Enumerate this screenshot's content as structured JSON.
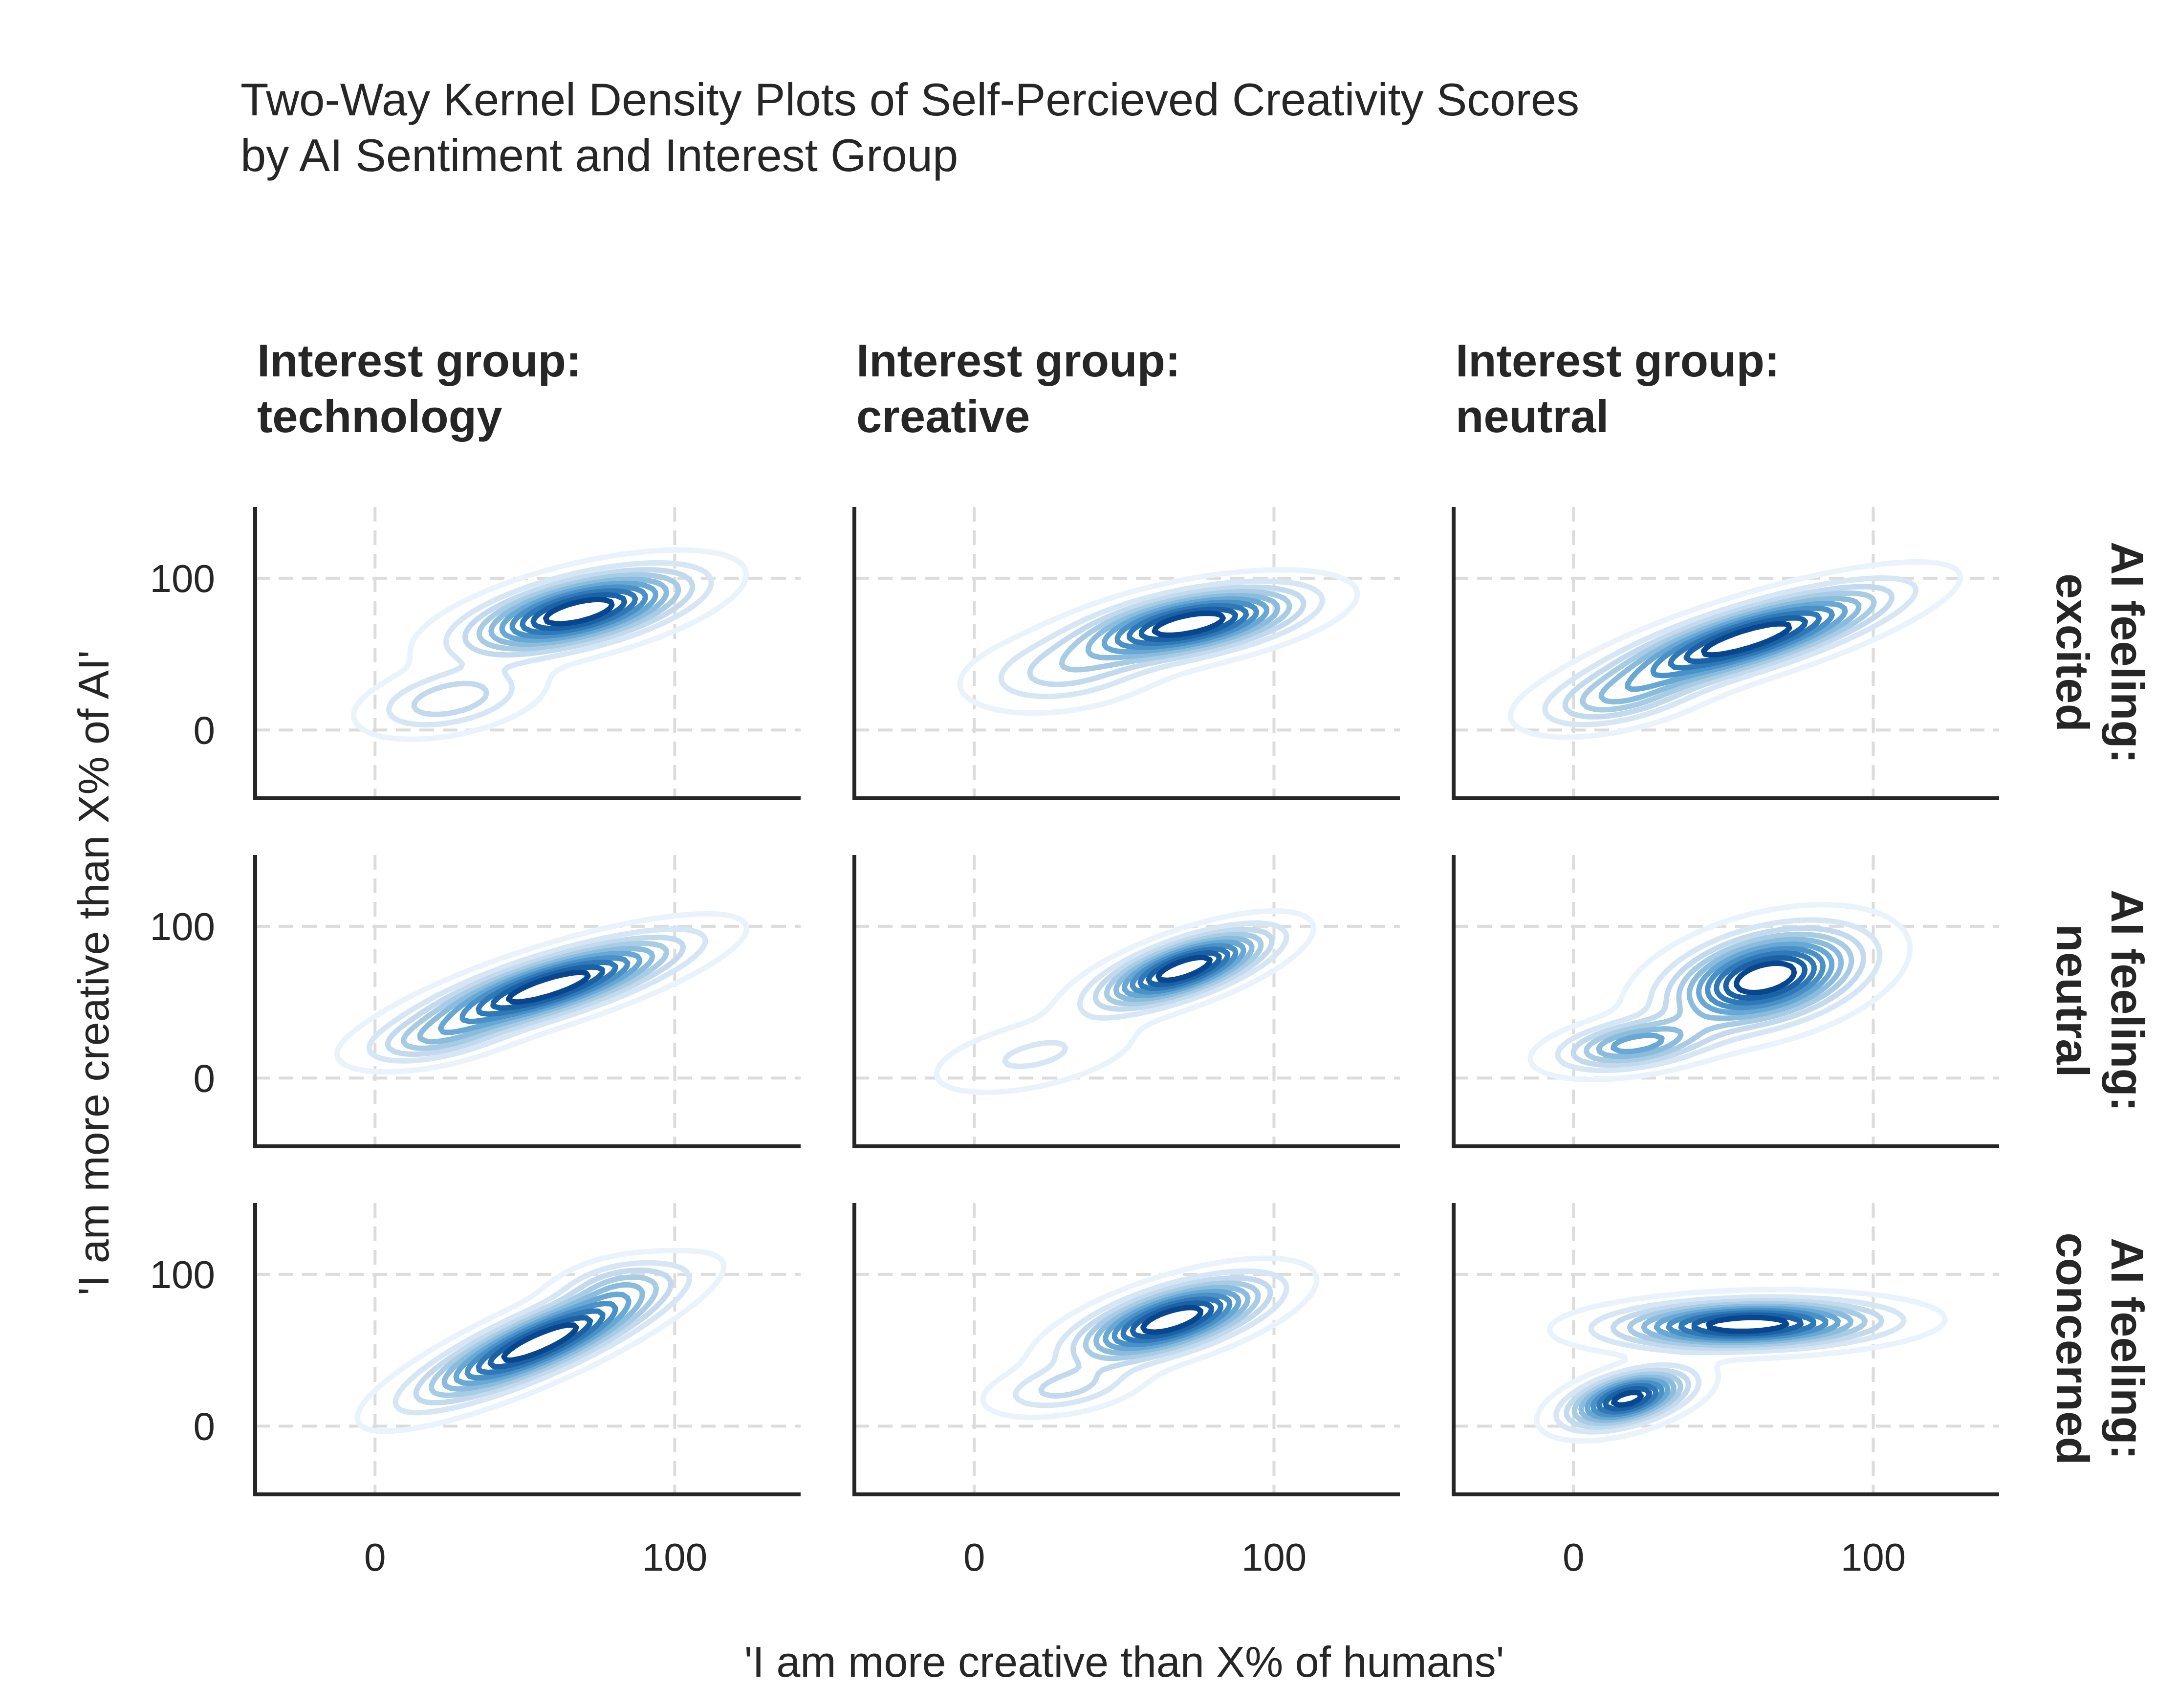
{
  "chart_data": {
    "type": "kde-contour-grid",
    "title_lines": [
      "Two-Way Kernel Density Plots of Self-Percieved Creativity Scores",
      "by AI Sentiment and Interest Group"
    ],
    "xlabel": "'I am more creative than X% of humans'",
    "ylabel": "'I am more creative than X% of AI'",
    "xlim": [
      -40,
      142
    ],
    "ylim": [
      -45,
      147
    ],
    "xticks": [
      0,
      100
    ],
    "yticks": [
      0,
      100
    ],
    "grid": true,
    "palette": [
      "#eaf2fb",
      "#d6e6f4",
      "#c3d9ee",
      "#a8cce4",
      "#8bbcdd",
      "#68a8d4",
      "#4a91c7",
      "#3079b8",
      "#1a62a5",
      "#08478f"
    ],
    "columns": [
      {
        "title_lines": [
          "Interest group:",
          "technology"
        ]
      },
      {
        "title_lines": [
          "Interest group:",
          "creative"
        ]
      },
      {
        "title_lines": [
          "Interest group:",
          "neutral"
        ]
      }
    ],
    "rows": [
      {
        "title_lines": [
          "AI feeling:",
          "excited"
        ]
      },
      {
        "title_lines": [
          "AI feeling:",
          "neutral"
        ]
      },
      {
        "title_lines": [
          "AI feeling:",
          "concerned"
        ]
      }
    ],
    "panels": [
      {
        "row": 0,
        "col": 0,
        "levels": 10,
        "peaks": [
          {
            "x": 68,
            "y": 78,
            "sx": 22,
            "sy": 16,
            "rho": 0.6,
            "w": 1.0
          },
          {
            "x": 25,
            "y": 20,
            "sx": 16,
            "sy": 13,
            "rho": 0.4,
            "w": 0.3
          }
        ]
      },
      {
        "row": 0,
        "col": 1,
        "levels": 10,
        "peaks": [
          {
            "x": 72,
            "y": 70,
            "sx": 22,
            "sy": 14,
            "rho": 0.55,
            "w": 1.0
          },
          {
            "x": 30,
            "y": 38,
            "sx": 18,
            "sy": 14,
            "rho": 0.3,
            "w": 0.25
          }
        ]
      },
      {
        "row": 0,
        "col": 2,
        "levels": 10,
        "peaks": [
          {
            "x": 58,
            "y": 60,
            "sx": 28,
            "sy": 20,
            "rho": 0.8,
            "w": 1.0
          },
          {
            "x": 15,
            "y": 20,
            "sx": 16,
            "sy": 12,
            "rho": 0.5,
            "w": 0.3
          }
        ]
      },
      {
        "row": 1,
        "col": 0,
        "levels": 10,
        "peaks": [
          {
            "x": 58,
            "y": 60,
            "sx": 26,
            "sy": 19,
            "rho": 0.8,
            "w": 1.0
          },
          {
            "x": 20,
            "y": 25,
            "sx": 14,
            "sy": 10,
            "rho": 0.5,
            "w": 0.25
          }
        ]
      },
      {
        "row": 1,
        "col": 1,
        "levels": 10,
        "peaks": [
          {
            "x": 70,
            "y": 72,
            "sx": 17,
            "sy": 15,
            "rho": 0.7,
            "w": 1.0
          },
          {
            "x": 20,
            "y": 15,
            "sx": 20,
            "sy": 15,
            "rho": 0.5,
            "w": 0.15
          }
        ]
      },
      {
        "row": 1,
        "col": 2,
        "levels": 10,
        "peaks": [
          {
            "x": 64,
            "y": 66,
            "sx": 19,
            "sy": 19,
            "rho": 0.4,
            "w": 1.0
          },
          {
            "x": 20,
            "y": 22,
            "sx": 15,
            "sy": 10,
            "rho": 0.4,
            "w": 0.55
          }
        ]
      },
      {
        "row": 2,
        "col": 0,
        "levels": 10,
        "peaks": [
          {
            "x": 55,
            "y": 55,
            "sx": 24,
            "sy": 23,
            "rho": 0.85,
            "w": 1.0
          },
          {
            "x": 80,
            "y": 95,
            "sx": 12,
            "sy": 10,
            "rho": 0.4,
            "w": 0.2
          }
        ]
      },
      {
        "row": 2,
        "col": 1,
        "levels": 10,
        "peaks": [
          {
            "x": 66,
            "y": 70,
            "sx": 19,
            "sy": 16,
            "rho": 0.65,
            "w": 1.0
          },
          {
            "x": 30,
            "y": 25,
            "sx": 14,
            "sy": 10,
            "rho": 0.4,
            "w": 0.25
          }
        ]
      },
      {
        "row": 2,
        "col": 2,
        "levels": 10,
        "peaks": [
          {
            "x": 58,
            "y": 67,
            "sx": 26,
            "sy": 9,
            "rho": 0.15,
            "w": 1.0
          },
          {
            "x": 18,
            "y": 18,
            "sx": 12,
            "sy": 11,
            "rho": 0.5,
            "w": 0.95
          }
        ]
      }
    ]
  }
}
